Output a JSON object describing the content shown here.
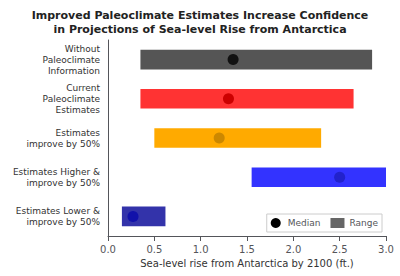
{
  "chart_data": {
    "type": "bar",
    "orientation": "horizontal",
    "title": "Improved Paleoclimate Estimates Increase Confidence\nin Projections of Sea-level Rise from Antarctica",
    "xlabel": "Sea-level rise from Antarctica by 2100 (ft.)",
    "categories": [
      "Without\nPaleoclimate\nInformation",
      "Current\nPaleoclimate\nEstimates",
      "Estimates\nimprove by 50%",
      "Estimates Higher &\nimprove by 50%",
      "Estimates Lower &\nimprove by 50%"
    ],
    "series": [
      {
        "name": "Median",
        "type": "scatter",
        "marker": "circle",
        "color": "#000000",
        "values": [
          1.35,
          1.3,
          1.2,
          2.5,
          0.27
        ],
        "colors": [
          "#111111",
          "#cc0000",
          "#cc8800",
          "#2222cc",
          "#1111aa"
        ]
      },
      {
        "name": "Range",
        "type": "bar",
        "color": "#666666",
        "low": [
          0.35,
          0.35,
          0.5,
          1.55,
          0.15
        ],
        "high": [
          2.85,
          2.65,
          2.3,
          3.0,
          0.62
        ],
        "colors": [
          "#555555",
          "#ff3333",
          "#ffaa00",
          "#3333ff",
          "#3333aa"
        ]
      }
    ],
    "xlim": [
      0.0,
      3.0
    ],
    "xticks": [
      {
        "value": 0.0,
        "label": "0.0"
      },
      0.5,
      {
        "value": 1.0,
        "label": "1.0"
      },
      1.5,
      {
        "value": 2.0,
        "label": "2.0"
      },
      2.5,
      {
        "value": 3.0,
        "label": "3.0"
      }
    ],
    "legend": "lower right"
  }
}
